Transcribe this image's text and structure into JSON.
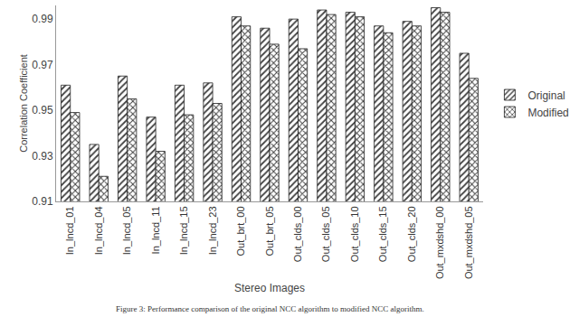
{
  "chart_data": {
    "type": "bar",
    "x_label": "Stereo Images",
    "y_label": "Correlation Coefficient",
    "annotations": [
      "Figure 3: Performance comparison of the original NCC algorithm to modified NCC algorithm."
    ],
    "categories": [
      "In_lncd_01",
      "In_lncd_04",
      "In_lncd_05",
      "In_lncd_11",
      "In_lncd_15",
      "In_lncd_23",
      "Out_brt_00",
      "Out_brt_05",
      "Out_clds_00",
      "Out_clds_05",
      "Out_clds_10",
      "Out_clds_15",
      "Out_clds_20",
      "Out_mxdshd_00",
      "Out_mxdshd_05"
    ],
    "series": [
      {
        "name": "Original",
        "color": "#404040",
        "values": [
          0.961,
          0.935,
          0.965,
          0.947,
          0.961,
          0.962,
          0.991,
          0.986,
          0.99,
          0.994,
          0.993,
          0.987,
          0.989,
          0.995,
          0.975
        ]
      },
      {
        "name": "Modified",
        "color": "#404040",
        "values": [
          0.949,
          0.921,
          0.955,
          0.932,
          0.948,
          0.953,
          0.987,
          0.979,
          0.977,
          0.992,
          0.991,
          0.984,
          0.987,
          0.993,
          0.964
        ]
      }
    ],
    "ylim": [
      0.91,
      0.996
    ],
    "yticks": [
      0.91,
      0.93,
      0.95,
      0.97,
      0.99
    ],
    "grid": false,
    "legend": "right",
    "data_labels": false
  }
}
